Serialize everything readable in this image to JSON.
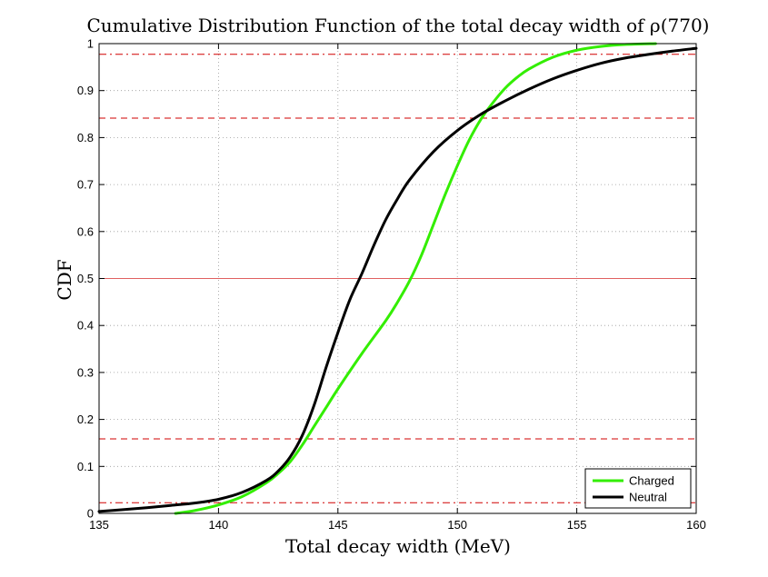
{
  "chart_data": {
    "type": "line",
    "title": "Cumulative Distribution Function of the total decay width of ρ(770)",
    "xlabel": "Total decay width (MeV)",
    "ylabel": "CDF",
    "xlim": [
      135,
      160
    ],
    "ylim": [
      0,
      1
    ],
    "xticks": [
      135,
      140,
      145,
      150,
      155,
      160
    ],
    "yticks": [
      0,
      0.1,
      0.2,
      0.3,
      0.4,
      0.5,
      0.6,
      0.7,
      0.8,
      0.9,
      1
    ],
    "grid": true,
    "legend_position": "bottom-right",
    "reference_lines": [
      {
        "y": 0.0228,
        "style": "dash-dot",
        "color": "#d00000"
      },
      {
        "y": 0.1587,
        "style": "dashed",
        "color": "#d00000"
      },
      {
        "y": 0.5,
        "style": "solid",
        "color": "#e06060"
      },
      {
        "y": 0.8413,
        "style": "dashed",
        "color": "#d00000"
      },
      {
        "y": 0.9772,
        "style": "dash-dot",
        "color": "#d00000"
      }
    ],
    "series": [
      {
        "name": "Charged",
        "color": "#33ee00",
        "x": [
          138.2,
          139,
          140,
          141,
          142,
          142.5,
          143,
          143.5,
          144,
          144.5,
          145,
          146,
          147,
          147.5,
          148,
          148.5,
          149,
          149.5,
          150,
          150.5,
          151,
          151.5,
          152,
          152.5,
          153,
          154,
          155,
          156,
          157,
          158.3
        ],
        "values": [
          0.0,
          0.006,
          0.018,
          0.036,
          0.065,
          0.085,
          0.11,
          0.145,
          0.185,
          0.225,
          0.265,
          0.34,
          0.41,
          0.45,
          0.495,
          0.55,
          0.615,
          0.68,
          0.74,
          0.795,
          0.84,
          0.875,
          0.905,
          0.928,
          0.946,
          0.971,
          0.986,
          0.994,
          0.998,
          1.0
        ]
      },
      {
        "name": "Neutral",
        "color": "#000000",
        "x": [
          135,
          136,
          137,
          138,
          139,
          140,
          141,
          142,
          142.5,
          143,
          143.5,
          144,
          144.5,
          145,
          145.5,
          146,
          146.5,
          147,
          147.5,
          148,
          149,
          150,
          151,
          152,
          153,
          154,
          155,
          156,
          157,
          158,
          159,
          160
        ],
        "values": [
          0.004,
          0.008,
          0.012,
          0.017,
          0.022,
          0.03,
          0.045,
          0.07,
          0.09,
          0.12,
          0.165,
          0.23,
          0.31,
          0.385,
          0.455,
          0.51,
          0.57,
          0.625,
          0.67,
          0.71,
          0.77,
          0.815,
          0.85,
          0.878,
          0.903,
          0.925,
          0.943,
          0.958,
          0.969,
          0.977,
          0.984,
          0.99
        ]
      }
    ]
  }
}
